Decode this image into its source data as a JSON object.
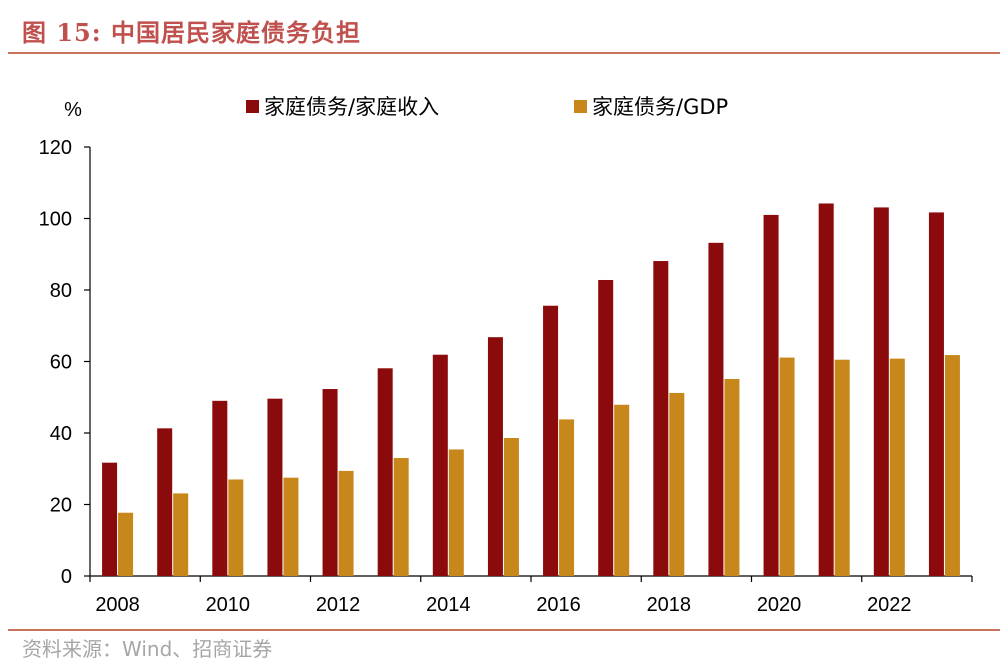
{
  "figure": {
    "title": "图 15:  中国居民家庭债务负担",
    "source": "资料来源：Wind、招商证券"
  },
  "colors": {
    "series1": "#8b0a0c",
    "series2": "#c8871a",
    "accent": "#c0504d",
    "rule": "#c8735a"
  },
  "chart_data": {
    "type": "bar",
    "title": "中国居民家庭债务负担",
    "ylabel": "%",
    "xlabel": "",
    "ylim": [
      0,
      120
    ],
    "yticks": [
      "0",
      "20",
      "40",
      "60",
      "80",
      "100",
      "120"
    ],
    "categories": [
      "2008",
      "2009",
      "2010",
      "2011",
      "2012",
      "2013",
      "2014",
      "2015",
      "2016",
      "2017",
      "2018",
      "2019",
      "2020",
      "2021",
      "2022",
      "2023"
    ],
    "xtick_labels": [
      "2008",
      "2010",
      "2012",
      "2014",
      "2016",
      "2018",
      "2020",
      "2022"
    ],
    "legend_position": "top",
    "series": [
      {
        "name": "家庭债务/家庭收入",
        "values": [
          31.7,
          41.3,
          49.0,
          49.6,
          52.3,
          58.1,
          61.9,
          66.8,
          75.6,
          82.8,
          88.1,
          93.2,
          101.0,
          104.2,
          103.1,
          101.7
        ]
      },
      {
        "name": "家庭债务/GDP",
        "values": [
          17.7,
          23.1,
          27.0,
          27.5,
          29.4,
          33.0,
          35.4,
          38.6,
          43.8,
          47.9,
          51.2,
          55.1,
          61.1,
          60.5,
          60.8,
          61.8
        ]
      }
    ]
  }
}
